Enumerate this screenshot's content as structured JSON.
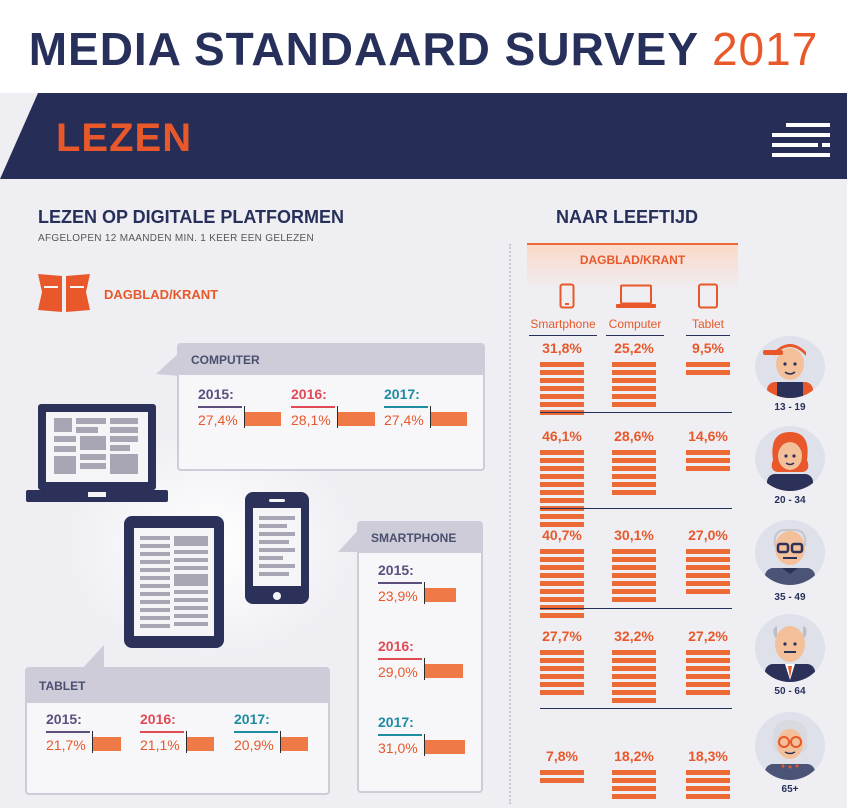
{
  "header": {
    "title": "MEDIA STANDAARD SURVEY",
    "year": "2017"
  },
  "banner": {
    "title": "LEZEN",
    "menu_icon": "menu-lines-icon"
  },
  "left": {
    "title": "LEZEN OP DIGITALE PLATFORMEN",
    "subtitle": "AFGELOPEN 12 MAANDEN MIN. 1 KEER EEN GELEZEN",
    "category": "DAGBLAD/KRANT"
  },
  "right": {
    "title": "NAAR LEEFTIJD",
    "category": "DAGBLAD/KRANT"
  },
  "colors": {
    "navy": "#262d56",
    "orange": "#e8582a",
    "y2015": "#5d4e7e",
    "y2016": "#e04a55",
    "y2017": "#1f8ba0"
  },
  "chart_data": [
    {
      "type": "bar",
      "title": "COMPUTER",
      "categories": [
        "2015:",
        "2016:",
        "2017:"
      ],
      "values": [
        27.4,
        28.1,
        27.4
      ],
      "labels": [
        "27,4%",
        "28,1%",
        "27,4%"
      ]
    },
    {
      "type": "bar",
      "title": "SMARTPHONE",
      "categories": [
        "2015:",
        "2016:",
        "2017:"
      ],
      "values": [
        23.9,
        29.0,
        31.0
      ],
      "labels": [
        "23,9%",
        "29,0%",
        "31,0%"
      ]
    },
    {
      "type": "bar",
      "title": "TABLET",
      "categories": [
        "2015:",
        "2016:",
        "2017:"
      ],
      "values": [
        21.7,
        21.1,
        20.9
      ],
      "labels": [
        "21,7%",
        "21,1%",
        "20,9%"
      ]
    },
    {
      "type": "bar",
      "title": "NAAR LEEFTIJD",
      "categories": [
        "13 - 19",
        "20 - 34",
        "35 - 49",
        "50 - 64",
        "65+"
      ],
      "series": [
        {
          "name": "Smartphone",
          "values": [
            31.8,
            46.1,
            40.7,
            27.7,
            7.8
          ],
          "labels": [
            "31,8%",
            "46,1%",
            "40,7%",
            "27,7%",
            "7,8%"
          ]
        },
        {
          "name": "Computer",
          "values": [
            25.2,
            28.6,
            30.1,
            32.2,
            18.2
          ],
          "labels": [
            "25,2%",
            "28,6%",
            "30,1%",
            "32,2%",
            "18,2%"
          ]
        },
        {
          "name": "Tablet",
          "values": [
            9.5,
            14.6,
            27.0,
            27.2,
            18.3
          ],
          "labels": [
            "9,5%",
            "14,6%",
            "27,0%",
            "27,2%",
            "18,3%"
          ]
        }
      ]
    }
  ]
}
